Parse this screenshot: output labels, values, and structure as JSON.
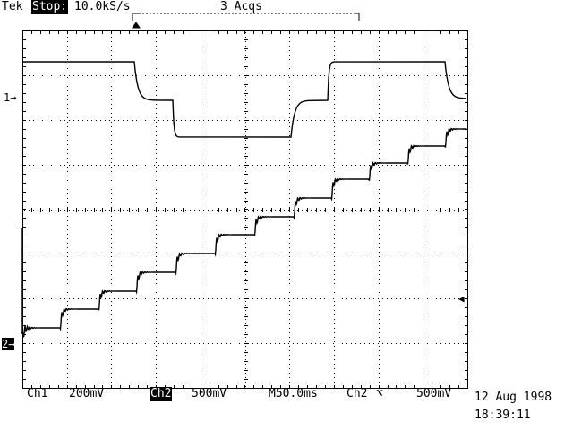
{
  "header": {
    "brand": "Tek",
    "state": "Stop:",
    "rate": "10.0kS/s",
    "acqs": "3 Acqs"
  },
  "markers": {
    "ch1": "1→",
    "ch2": "2→",
    "trigger_level": "◀"
  },
  "footer": {
    "ch1_label": "Ch1",
    "ch1_scale": "200mV",
    "ch2_label": "Ch2",
    "ch2_scale": "500mV",
    "timebase": "M50.0ms",
    "trigger_source": "Ch2",
    "trigger_slope": "⌥",
    "trigger_level": "500mV"
  },
  "datetime": {
    "date": "12 Aug 1998",
    "time": "18:39:11"
  },
  "colors": {
    "trace": "#000000",
    "graticule": "#000000",
    "background": "#ffffff"
  }
}
